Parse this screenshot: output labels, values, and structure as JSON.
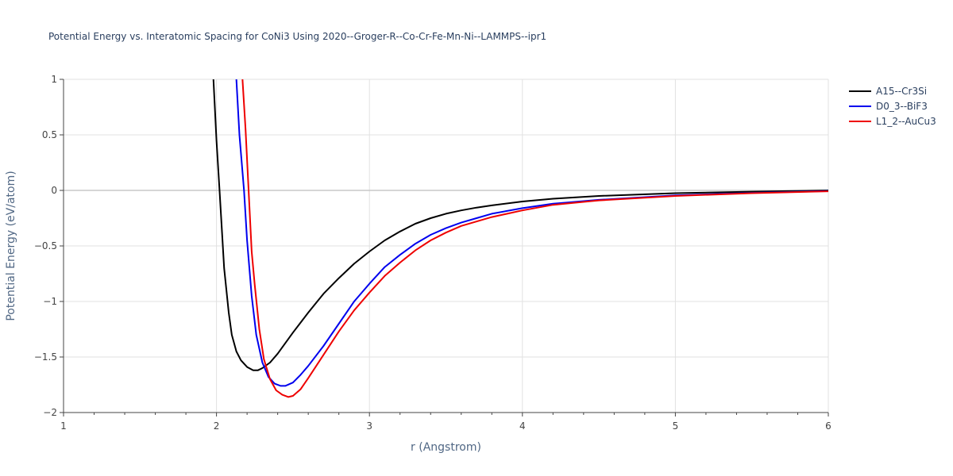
{
  "chart_data": {
    "type": "line",
    "title": "Potential Energy vs. Interatomic Spacing for CoNi3 Using 2020--Groger-R--Co-Cr-Fe-Mn-Ni--LAMMPS--ipr1",
    "xlabel": "r (Angstrom)",
    "ylabel": "Potential Energy (eV/atom)",
    "xlim": [
      1,
      6
    ],
    "ylim": [
      -2,
      1
    ],
    "xticks": [
      1,
      2,
      3,
      4,
      5,
      6
    ],
    "xtick_labels": [
      "1",
      "2",
      "3",
      "4",
      "5",
      "6"
    ],
    "yticks": [
      1,
      0.5,
      0,
      -0.5,
      -1,
      -1.5,
      -2
    ],
    "ytick_labels": [
      "1",
      "0.5",
      "0",
      "−0.5",
      "−1",
      "−1.5",
      "−2"
    ],
    "grid": true,
    "legend_position": "top-right",
    "series": [
      {
        "name": "A15--Cr3Si",
        "color": "#000000",
        "x": [
          1.98,
          2.0,
          2.02,
          2.05,
          2.08,
          2.1,
          2.13,
          2.16,
          2.2,
          2.24,
          2.27,
          2.3,
          2.35,
          2.4,
          2.5,
          2.6,
          2.7,
          2.8,
          2.9,
          3.0,
          3.1,
          3.2,
          3.3,
          3.4,
          3.5,
          3.6,
          3.7,
          3.8,
          4.0,
          4.2,
          4.5,
          5.0,
          5.5,
          6.0
        ],
        "y": [
          1.0,
          0.45,
          0.0,
          -0.7,
          -1.1,
          -1.3,
          -1.45,
          -1.53,
          -1.59,
          -1.62,
          -1.62,
          -1.6,
          -1.55,
          -1.47,
          -1.28,
          -1.1,
          -0.93,
          -0.79,
          -0.66,
          -0.55,
          -0.45,
          -0.37,
          -0.3,
          -0.25,
          -0.21,
          -0.18,
          -0.155,
          -0.135,
          -0.1,
          -0.075,
          -0.05,
          -0.025,
          -0.012,
          0.0
        ]
      },
      {
        "name": "D0_3--BiF3",
        "color": "#0000ee",
        "x": [
          2.13,
          2.15,
          2.18,
          2.2,
          2.23,
          2.26,
          2.3,
          2.34,
          2.38,
          2.42,
          2.45,
          2.5,
          2.55,
          2.6,
          2.7,
          2.8,
          2.9,
          3.0,
          3.1,
          3.2,
          3.3,
          3.4,
          3.5,
          3.6,
          3.7,
          3.8,
          4.0,
          4.2,
          4.5,
          5.0,
          5.5,
          6.0
        ],
        "y": [
          1.0,
          0.5,
          0.0,
          -0.45,
          -0.95,
          -1.3,
          -1.55,
          -1.68,
          -1.74,
          -1.76,
          -1.76,
          -1.73,
          -1.66,
          -1.58,
          -1.4,
          -1.2,
          -1.0,
          -0.84,
          -0.69,
          -0.58,
          -0.48,
          -0.4,
          -0.34,
          -0.29,
          -0.25,
          -0.21,
          -0.16,
          -0.12,
          -0.085,
          -0.045,
          -0.022,
          -0.005
        ]
      },
      {
        "name": "L1_2--AuCu3",
        "color": "#ee0000",
        "x": [
          2.17,
          2.19,
          2.21,
          2.23,
          2.25,
          2.28,
          2.31,
          2.35,
          2.39,
          2.43,
          2.47,
          2.5,
          2.55,
          2.6,
          2.7,
          2.8,
          2.9,
          3.0,
          3.1,
          3.2,
          3.3,
          3.4,
          3.5,
          3.6,
          3.7,
          3.8,
          4.0,
          4.2,
          4.5,
          5.0,
          5.5,
          6.0
        ],
        "y": [
          1.0,
          0.55,
          0.0,
          -0.55,
          -0.85,
          -1.25,
          -1.52,
          -1.7,
          -1.8,
          -1.84,
          -1.86,
          -1.85,
          -1.79,
          -1.69,
          -1.48,
          -1.27,
          -1.08,
          -0.92,
          -0.77,
          -0.65,
          -0.54,
          -0.45,
          -0.38,
          -0.32,
          -0.28,
          -0.24,
          -0.18,
          -0.13,
          -0.09,
          -0.05,
          -0.025,
          -0.008
        ]
      }
    ]
  }
}
